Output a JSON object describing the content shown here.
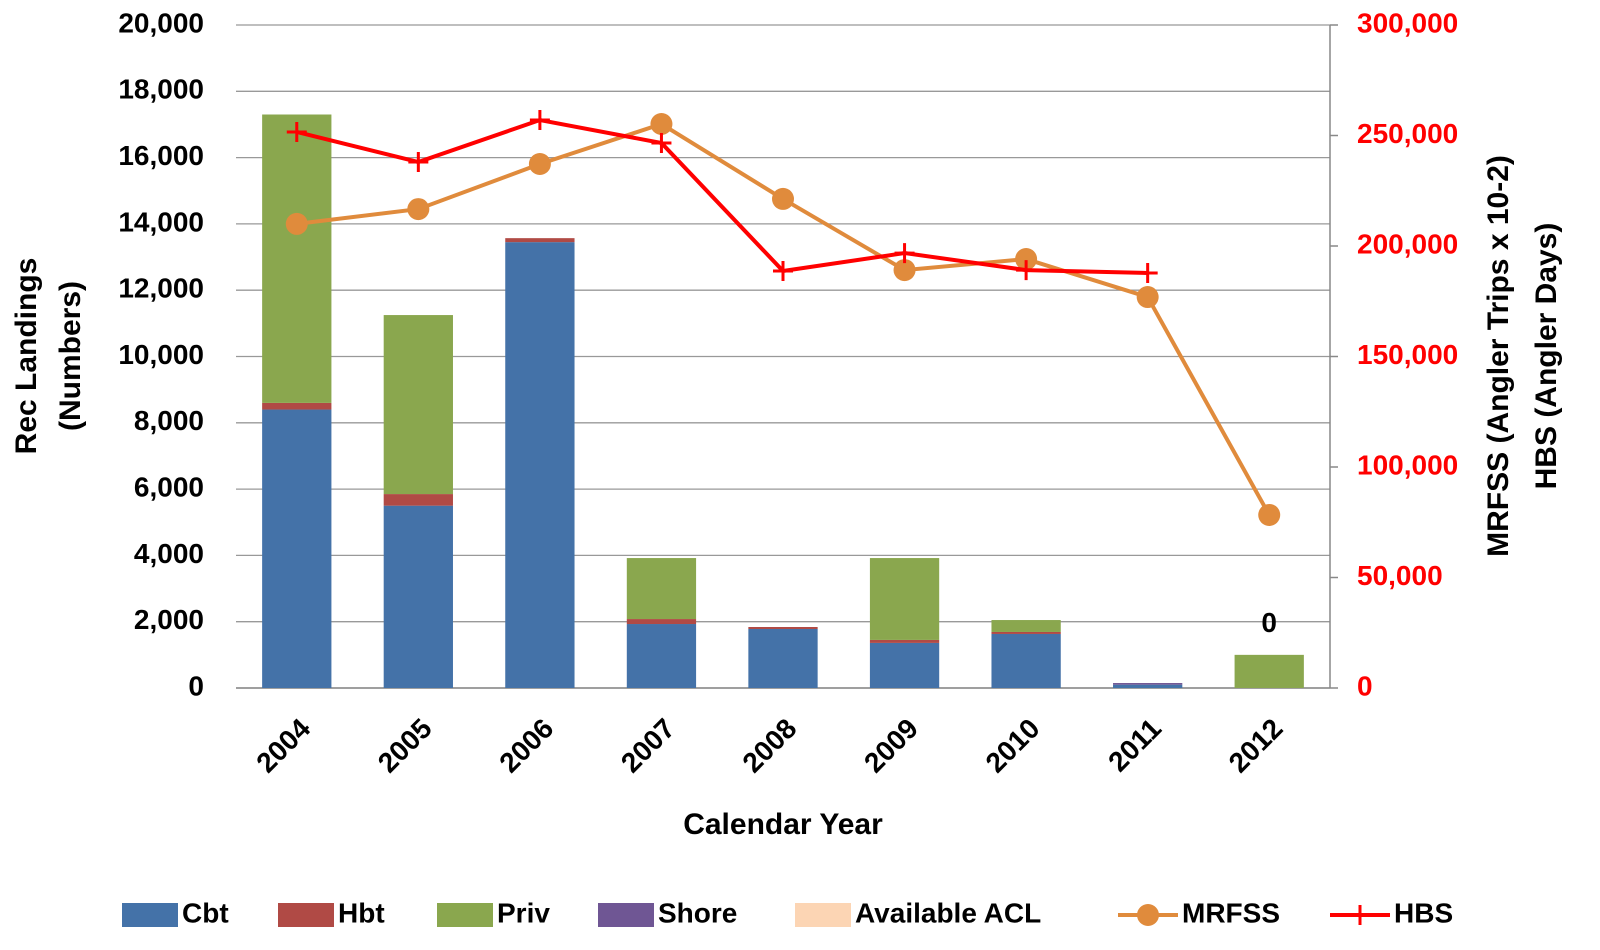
{
  "chart_data": {
    "type": "bar",
    "xlabel": "Calendar Year",
    "ylabel": [
      "Rec Landings",
      "(Numbers)"
    ],
    "y2label": [
      "MRFSS (Angler Trips x 10-2)",
      "HBS (Angler Days)"
    ],
    "categories": [
      "2004",
      "2005",
      "2006",
      "2007",
      "2008",
      "2009",
      "2010",
      "2011",
      "2012"
    ],
    "ylim": [
      0,
      20000
    ],
    "yticks": [
      0,
      {
        "value": 2000,
        "label": "2,000"
      },
      {
        "value": 4000,
        "label": "4,000"
      },
      {
        "value": 6000,
        "label": "6,000"
      },
      {
        "value": 8000,
        "label": "8,000"
      },
      {
        "value": 10000,
        "label": "10,000"
      },
      {
        "value": 12000,
        "label": "12,000"
      },
      {
        "value": 14000,
        "label": "14,000"
      },
      {
        "value": 16000,
        "label": "16,000"
      },
      {
        "value": 18000,
        "label": "18,000"
      },
      {
        "value": 20000,
        "label": "20,000"
      }
    ],
    "y2lim": [
      0,
      300000
    ],
    "y2ticks": [
      0,
      {
        "value": 50000,
        "label": "50,000"
      },
      {
        "value": 100000,
        "label": "100,000"
      },
      {
        "value": 150000,
        "label": "150,000"
      },
      {
        "value": 200000,
        "label": "200,000"
      },
      {
        "value": 250000,
        "label": "250,000"
      },
      {
        "value": 300000,
        "label": "300,000"
      }
    ],
    "y2color": "#ff0000",
    "grid": true,
    "legend": "bottom",
    "series": [
      {
        "name": "Cbt",
        "type": "bar",
        "color": "#4472a8",
        "values": [
          8400,
          5500,
          13450,
          1930,
          1780,
          1360,
          1630,
          100,
          0
        ]
      },
      {
        "name": "Hbt",
        "type": "bar",
        "color": "#b04a45",
        "values": [
          200,
          350,
          120,
          150,
          60,
          90,
          60,
          0,
          0
        ]
      },
      {
        "name": "Priv",
        "type": "bar",
        "color": "#8aa74e",
        "values": [
          8700,
          5400,
          0,
          1840,
          0,
          2470,
          360,
          0,
          1000
        ]
      },
      {
        "name": "Shore",
        "type": "bar",
        "color": "#6f5694",
        "values": [
          0,
          0,
          0,
          0,
          0,
          0,
          0,
          50,
          0
        ]
      },
      {
        "name": "Available ACL",
        "type": "bar",
        "color": "#fcd5b4",
        "values": [
          null,
          null,
          null,
          null,
          null,
          null,
          null,
          null,
          0
        ],
        "data_labels": true
      },
      {
        "name": "MRFSS",
        "type": "line",
        "axis": "y2",
        "marker": "circle",
        "color": "#e08b3c",
        "values": [
          210000,
          216700,
          237100,
          255200,
          221300,
          189100,
          194100,
          176900,
          78300
        ]
      },
      {
        "name": "HBS",
        "type": "line",
        "axis": "y2",
        "marker": "plus",
        "color": "#ff0000",
        "values": [
          251600,
          238000,
          257000,
          246600,
          188700,
          196800,
          189100,
          187800,
          null
        ]
      }
    ]
  }
}
